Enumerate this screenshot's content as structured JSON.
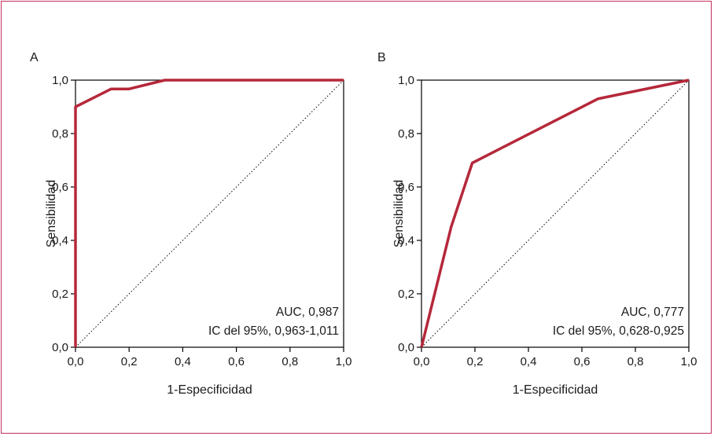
{
  "colors": {
    "roc_line": "#b5283a",
    "frame_border": "#c0305a",
    "axis": "#000000"
  },
  "chart_data": [
    {
      "type": "line",
      "panel_label": "A",
      "xlabel": "1-Especificidad",
      "ylabel": "Sensibilidad",
      "xlim": [
        0,
        1
      ],
      "ylim": [
        0,
        1
      ],
      "x_ticks": [
        "0,0",
        "0,2",
        "0,4",
        "0,6",
        "0,8",
        "1,0"
      ],
      "y_ticks": [
        "0,0",
        "0,2",
        "0,4",
        "0,6",
        "0,8",
        "1,0"
      ],
      "grid": false,
      "reference_line": {
        "style": "dotted",
        "points": [
          [
            0,
            0
          ],
          [
            1,
            1
          ]
        ]
      },
      "series": [
        {
          "x": [
            0.0,
            0.0,
            0.133,
            0.2,
            0.333,
            1.0
          ],
          "y": [
            0.0,
            0.9,
            0.967,
            0.967,
            1.0,
            1.0
          ]
        }
      ],
      "annotation_lines": [
        "AUC, 0,987",
        "IC del 95%, 0,963-1,011"
      ]
    },
    {
      "type": "line",
      "panel_label": "B",
      "xlabel": "1-Especificidad",
      "ylabel": "Sensibilidad",
      "xlim": [
        0,
        1
      ],
      "ylim": [
        0,
        1
      ],
      "x_ticks": [
        "0,0",
        "0,2",
        "0,4",
        "0,6",
        "0,8",
        "1,0"
      ],
      "y_ticks": [
        "0,0",
        "0,2",
        "0,4",
        "0,6",
        "0,8",
        "1,0"
      ],
      "grid": false,
      "reference_line": {
        "style": "dotted",
        "points": [
          [
            0,
            0
          ],
          [
            1,
            1
          ]
        ]
      },
      "series": [
        {
          "x": [
            0.0,
            0.111,
            0.19,
            0.66,
            1.0
          ],
          "y": [
            0.0,
            0.45,
            0.69,
            0.93,
            1.0
          ]
        }
      ],
      "annotation_lines": [
        "AUC, 0,777",
        "IC del 95%, 0,628-0,925"
      ]
    }
  ]
}
